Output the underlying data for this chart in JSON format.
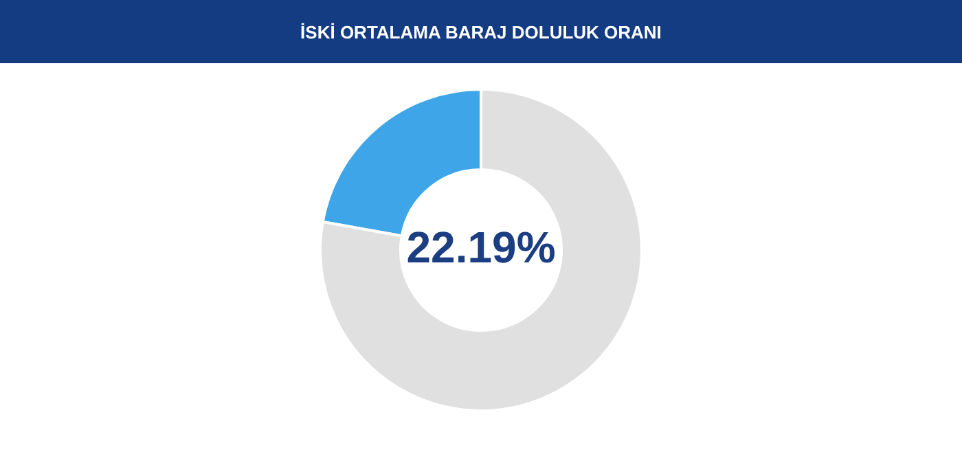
{
  "chart_data": {
    "type": "donut",
    "title": "İSKİ ORTALAMA BARAJ DOLULUK ORANI",
    "categories": [
      null,
      null
    ],
    "values": [
      22.19,
      77.81
    ],
    "colors": [
      "#3ea6e8",
      "#e0e0e0"
    ],
    "annotations": [
      "22.19%"
    ],
    "legend": false
  }
}
